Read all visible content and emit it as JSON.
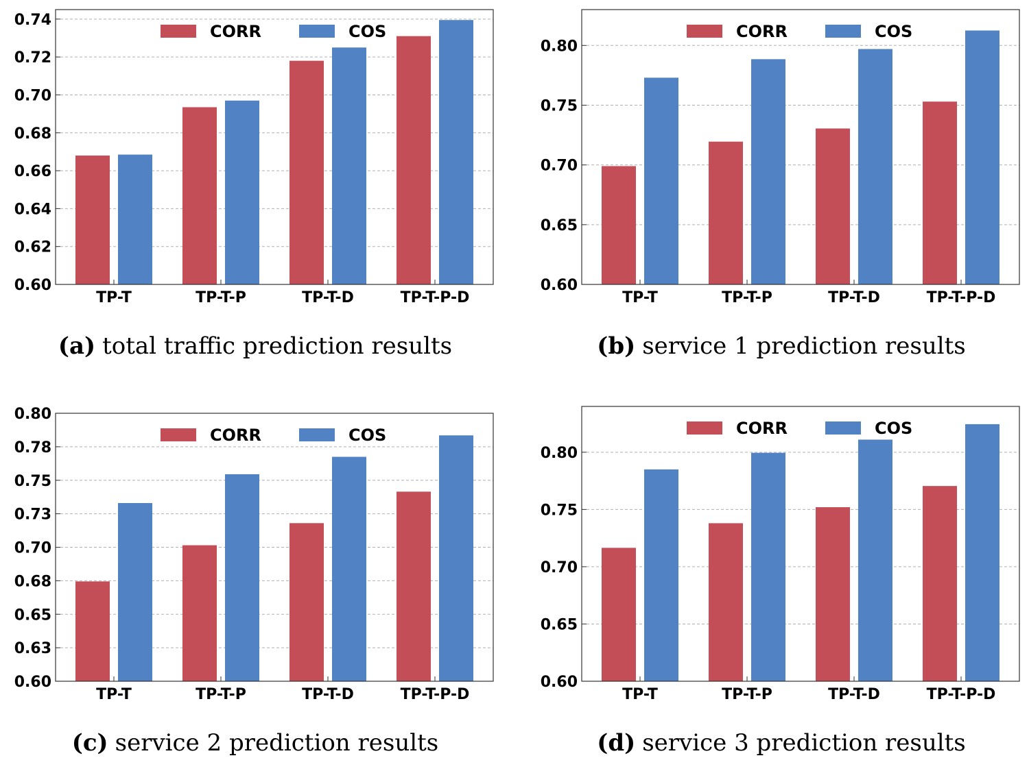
{
  "colors": {
    "corr": "#c44e58",
    "cos": "#5182c4",
    "grid": "#b0b0b0",
    "frame": "#333333"
  },
  "chart_data": [
    {
      "type": "bar",
      "categories": [
        "TP-T",
        "TP-T-P",
        "TP-T-D",
        "TP-T-P-D"
      ],
      "series": [
        {
          "name": "CORR",
          "values": [
            0.668,
            0.6935,
            0.718,
            0.731
          ]
        },
        {
          "name": "COS",
          "values": [
            0.6685,
            0.697,
            0.725,
            0.7395
          ]
        }
      ],
      "ylim": [
        0.6,
        0.745
      ],
      "yticks": [
        0.6,
        0.62,
        0.64,
        0.66,
        0.68,
        0.7,
        0.72,
        0.74
      ],
      "ytick_labels": [
        "0.60",
        "0.62",
        "0.64",
        "0.66",
        "0.68",
        "0.70",
        "0.72",
        "0.74"
      ],
      "legend": "top-center",
      "caption_tag": "(a)",
      "caption_text": "total traffic prediction results"
    },
    {
      "type": "bar",
      "categories": [
        "TP-T",
        "TP-T-P",
        "TP-T-D",
        "TP-T-P-D"
      ],
      "series": [
        {
          "name": "CORR",
          "values": [
            0.699,
            0.7195,
            0.7305,
            0.753
          ]
        },
        {
          "name": "COS",
          "values": [
            0.773,
            0.7885,
            0.797,
            0.8125
          ]
        }
      ],
      "ylim": [
        0.6,
        0.83
      ],
      "yticks": [
        0.6,
        0.65,
        0.7,
        0.75,
        0.8
      ],
      "ytick_labels": [
        "0.60",
        "0.65",
        "0.70",
        "0.75",
        "0.80"
      ],
      "legend": "top-center",
      "caption_tag": "(b)",
      "caption_text": "service 1 prediction results"
    },
    {
      "type": "bar",
      "categories": [
        "TP-T",
        "TP-T-P",
        "TP-T-D",
        "TP-T-P-D"
      ],
      "series": [
        {
          "name": "CORR",
          "values": [
            0.6745,
            0.7015,
            0.718,
            0.7415
          ]
        },
        {
          "name": "COS",
          "values": [
            0.733,
            0.7545,
            0.7675,
            0.7835
          ]
        }
      ],
      "ylim": [
        0.6,
        0.8
      ],
      "yticks": [
        0.6,
        0.625,
        0.65,
        0.675,
        0.7,
        0.725,
        0.75,
        0.775,
        0.8
      ],
      "ytick_labels": [
        "0.60",
        "0.63",
        "0.65",
        "0.68",
        "0.70",
        "0.73",
        "0.75",
        "0.78",
        "0.80"
      ],
      "legend": "top-center",
      "caption_tag": "(c)",
      "caption_text": "service 2 prediction results"
    },
    {
      "type": "bar",
      "categories": [
        "TP-T",
        "TP-T-P",
        "TP-T-D",
        "TP-T-P-D"
      ],
      "series": [
        {
          "name": "CORR",
          "values": [
            0.7165,
            0.738,
            0.752,
            0.7705
          ]
        },
        {
          "name": "COS",
          "values": [
            0.785,
            0.7995,
            0.811,
            0.8245
          ]
        }
      ],
      "ylim": [
        0.6,
        0.84
      ],
      "yticks": [
        0.6,
        0.65,
        0.7,
        0.75,
        0.8
      ],
      "ytick_labels": [
        "0.60",
        "0.65",
        "0.70",
        "0.75",
        "0.80"
      ],
      "legend": "top-center",
      "caption_tag": "(d)",
      "caption_text": "service 3 prediction results"
    }
  ]
}
